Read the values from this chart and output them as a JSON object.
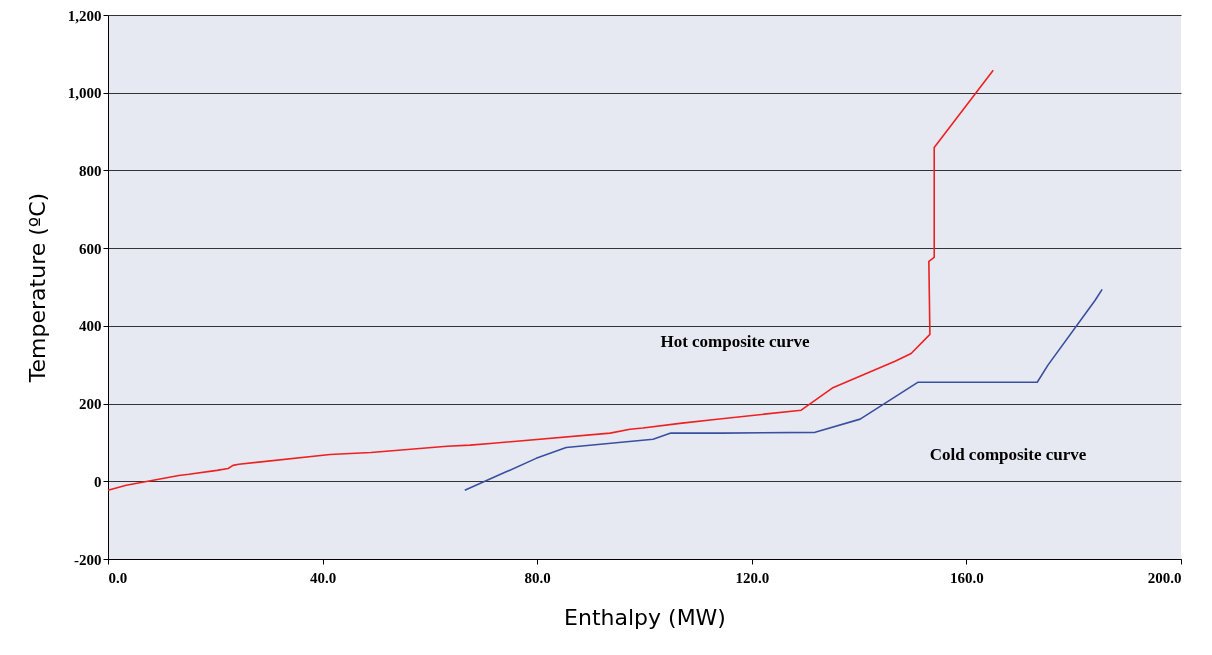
{
  "chart_data": {
    "type": "line",
    "xlabel": "Enthalpy (MW)",
    "ylabel": "Temperature (ºC)",
    "xlim": [
      0,
      200
    ],
    "ylim": [
      -200,
      1200
    ],
    "xticks": [
      {
        "value": 0,
        "label": "0.0"
      },
      {
        "value": 40,
        "label": "40.0"
      },
      {
        "value": 80,
        "label": "80.0"
      },
      {
        "value": 120,
        "label": "120.0"
      },
      {
        "value": 160,
        "label": "160.0"
      },
      {
        "value": 200,
        "label": "200.0"
      }
    ],
    "yticks": [
      {
        "value": -200,
        "label": "-200"
      },
      0,
      200,
      400,
      600,
      800,
      {
        "value": 1000,
        "label": "1,000"
      },
      {
        "value": 1200,
        "label": "1,200"
      }
    ],
    "grid": "y",
    "marker": "none",
    "line_style": "solid",
    "series": [
      {
        "color": "#ee2020",
        "x": [
          0,
          3.4,
          13.2,
          15.1,
          20.3,
          22.4,
          23.3,
          24.4,
          41.4,
          49,
          63.2,
          67.5,
          71.8,
          93.6,
          97.3,
          99.7,
          106.6,
          113.1,
          129.2,
          135,
          146.7,
          149.7,
          153.2,
          153,
          154,
          154,
          165
        ],
        "values": [
          -23,
          -10,
          15,
          18,
          28,
          33,
          41,
          44,
          69,
          74,
          90,
          93,
          98,
          124,
          134,
          137,
          149,
          159,
          183,
          240,
          309,
          329,
          378,
          566,
          576,
          859,
          1058
        ]
      },
      {
        "color": "#3a4fa0",
        "x": [
          66.5,
          74,
          79.8,
          85.4,
          101.6,
          104.9,
          114.4,
          131.8,
          140.2,
          151,
          173.2,
          175.2,
          184,
          185.3
        ],
        "values": [
          -23,
          23,
          59,
          87,
          108,
          124,
          124,
          126,
          160,
          255,
          255,
          299,
          466,
          494
        ]
      }
    ],
    "annotations": [
      "Hot composite curve",
      "Cold composite curve"
    ]
  }
}
